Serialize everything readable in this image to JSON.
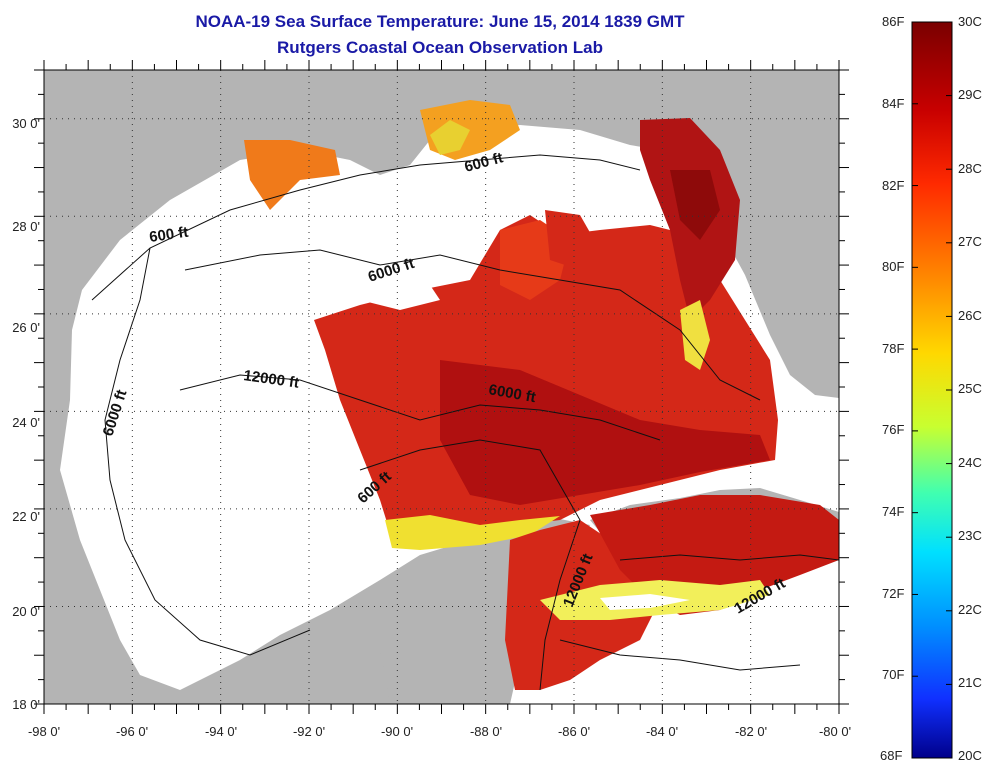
{
  "header": {
    "title": "NOAA-19 Sea Surface Temperature:  June 15, 2014 1839 GMT",
    "subtitle": "Rutgers Coastal Ocean Observation Lab"
  },
  "map": {
    "lon_range": [
      -98,
      -80
    ],
    "lat_range": [
      18,
      31
    ],
    "lon_ticks": [
      "-98 0'",
      "-96 0'",
      "-94 0'",
      "-92 0'",
      "-90 0'",
      "-88 0'",
      "-86 0'",
      "-84 0'",
      "-82 0'",
      "-80 0'"
    ],
    "lat_ticks": [
      "18 0'",
      "20 0'",
      "22 0'",
      "24 0'",
      "26 0'",
      "28 0'",
      "30 0'"
    ],
    "contour_labels": [
      "600 ft",
      "600 ft",
      "6000 ft",
      "6000 ft",
      "12000 ft",
      "6000 ft",
      "600 ft",
      "12000 ft",
      "12000 ft"
    ],
    "colors": {
      "land": "#b4b4b4",
      "no_data": "#ffffff",
      "sst_dark": "#9c0d0d",
      "sst_warm": "#d8261a",
      "sst_orange": "#f07418",
      "sst_yellow": "#f4e81e"
    }
  },
  "colorbar": {
    "fahrenheit_labels": [
      "86F",
      "84F",
      "82F",
      "80F",
      "78F",
      "76F",
      "74F",
      "72F",
      "70F",
      "68F"
    ],
    "celsius_labels": [
      "30C",
      "29C",
      "28C",
      "27C",
      "26C",
      "25C",
      "24C",
      "23C",
      "22C",
      "21C",
      "20C"
    ],
    "range_c": [
      20,
      30
    ]
  }
}
